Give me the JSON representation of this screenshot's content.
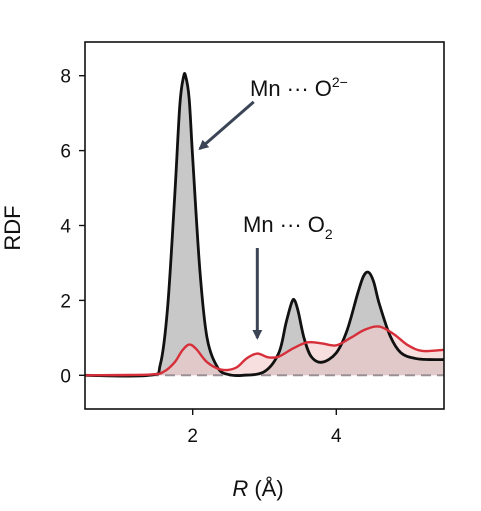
{
  "chart_data": {
    "type": "area",
    "xlabel_var": "R",
    "xlabel_unit": "(Å)",
    "ylabel": "RDF",
    "xlim": [
      0.5,
      5.5
    ],
    "ylim": [
      -0.9,
      8.9
    ],
    "xticks": [
      2,
      4
    ],
    "yticks": [
      0,
      2,
      4,
      6,
      8
    ],
    "grid": false,
    "series": [
      {
        "color": "#111111",
        "fill": "#c8c8c8",
        "x": [
          0.5,
          1.4,
          1.55,
          1.65,
          1.75,
          1.82,
          1.87,
          1.9,
          1.95,
          2.0,
          2.1,
          2.2,
          2.35,
          2.5,
          2.7,
          3.0,
          3.2,
          3.3,
          3.38,
          3.42,
          3.47,
          3.55,
          3.65,
          3.8,
          4.0,
          4.15,
          4.3,
          4.38,
          4.45,
          4.52,
          4.6,
          4.75,
          4.9,
          5.1,
          5.3,
          5.5
        ],
        "y": [
          0,
          0,
          0.3,
          1.8,
          4.8,
          7.2,
          7.95,
          8.0,
          7.4,
          5.8,
          2.8,
          1.0,
          0.2,
          0.02,
          0,
          0.1,
          0.6,
          1.4,
          1.95,
          2.0,
          1.7,
          1.0,
          0.5,
          0.35,
          0.6,
          1.2,
          2.2,
          2.65,
          2.75,
          2.5,
          1.9,
          1.05,
          0.6,
          0.45,
          0.42,
          0.42
        ]
      },
      {
        "color": "#d62f3a",
        "fill": "#f4c9c9",
        "x": [
          0.5,
          1.4,
          1.6,
          1.75,
          1.85,
          1.95,
          2.05,
          2.2,
          2.4,
          2.6,
          2.75,
          2.9,
          3.05,
          3.2,
          3.4,
          3.6,
          3.8,
          4.0,
          4.2,
          4.4,
          4.6,
          4.8,
          5.0,
          5.2,
          5.5
        ],
        "y": [
          0,
          0.02,
          0.1,
          0.35,
          0.65,
          0.82,
          0.7,
          0.35,
          0.15,
          0.2,
          0.45,
          0.58,
          0.48,
          0.5,
          0.72,
          0.88,
          0.85,
          0.8,
          1.0,
          1.22,
          1.3,
          1.1,
          0.8,
          0.65,
          0.68
        ]
      }
    ],
    "baseline": {
      "y": 0,
      "style": "dashed",
      "color": "#9a8f95"
    },
    "annotations": [
      {
        "id": "mn-o2minus",
        "text_main": "Mn ··· O",
        "text_script": "2−",
        "script": "sup",
        "arrow_from": [
          2.85,
          7.3
        ],
        "arrow_to": [
          2.1,
          6.05
        ]
      },
      {
        "id": "mn-o2",
        "text_main": "Mn ··· O",
        "text_script": "2",
        "script": "sub",
        "arrow_from": [
          2.9,
          3.4
        ],
        "arrow_to": [
          2.9,
          1.0
        ]
      }
    ]
  }
}
